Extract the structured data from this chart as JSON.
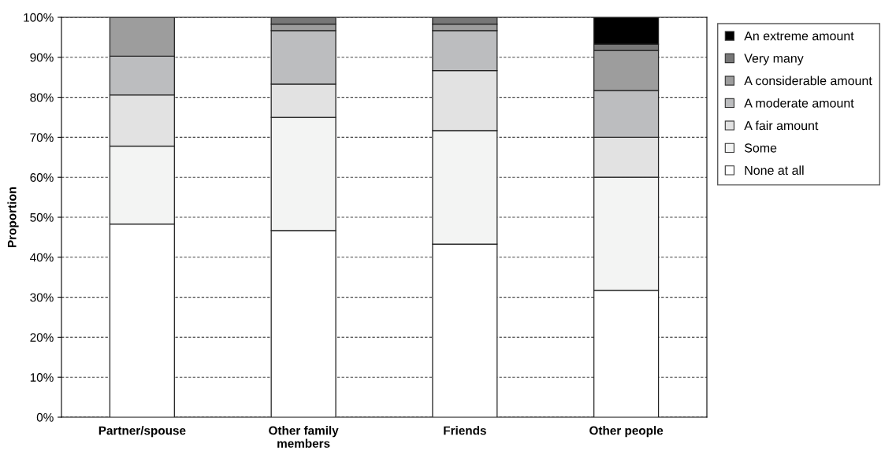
{
  "chart_data": {
    "type": "bar",
    "stacked": true,
    "ylabel": "Proportion",
    "categories": [
      "Partner/spouse",
      "Other family\nmembers",
      "Friends",
      "Other people"
    ],
    "series": [
      {
        "name": "None at all",
        "color": "#ffffff",
        "values": [
          48.3,
          46.7,
          43.3,
          31.7
        ]
      },
      {
        "name": "Some",
        "color": "#f3f4f3",
        "values": [
          19.5,
          28.3,
          28.4,
          28.3
        ]
      },
      {
        "name": "A fair amount",
        "color": "#e2e2e2",
        "values": [
          12.8,
          8.3,
          15.0,
          10.0
        ]
      },
      {
        "name": "A moderate amount",
        "color": "#bcbdbf",
        "values": [
          9.7,
          13.4,
          10.0,
          11.7
        ]
      },
      {
        "name": "A considerable amount",
        "color": "#9d9d9d",
        "values": [
          9.7,
          1.6,
          1.6,
          10.0
        ]
      },
      {
        "name": "Very many",
        "color": "#777777",
        "values": [
          0,
          1.7,
          1.7,
          1.6
        ]
      },
      {
        "name": "An extreme amount",
        "color": "#000000",
        "values": [
          0,
          0,
          0,
          6.7
        ]
      }
    ],
    "ylim": [
      0,
      100
    ],
    "yticks": [
      {
        "value": 0,
        "label": "0%"
      },
      {
        "value": 10,
        "label": "10%"
      },
      {
        "value": 20,
        "label": "20%"
      },
      {
        "value": 30,
        "label": "30%"
      },
      {
        "value": 40,
        "label": "40%"
      },
      {
        "value": 50,
        "label": "50%"
      },
      {
        "value": 60,
        "label": "60%"
      },
      {
        "value": 70,
        "label": "70%"
      },
      {
        "value": 80,
        "label": "80%"
      },
      {
        "value": 90,
        "label": "90%"
      },
      {
        "value": 100,
        "label": "100%"
      }
    ],
    "grid": "y",
    "legend": "top right"
  }
}
